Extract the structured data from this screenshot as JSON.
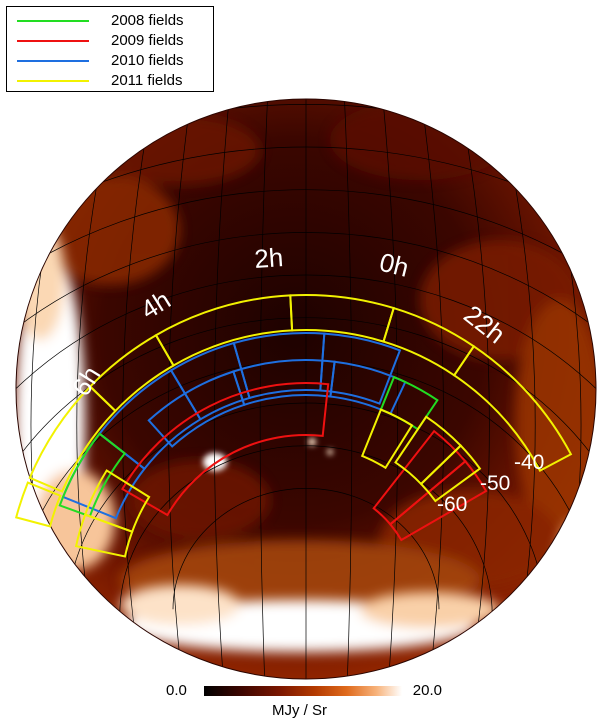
{
  "legend": {
    "items": [
      {
        "label": "2008 fields",
        "color": "#22dd22"
      },
      {
        "label": "2009 fields",
        "color": "#ee1111"
      },
      {
        "label": "2010 fields",
        "color": "#1e6fe0"
      },
      {
        "label": "2011 fields",
        "color": "#f2f200"
      }
    ]
  },
  "ra_labels": [
    "6h",
    "4h",
    "2h",
    "0h",
    "22h"
  ],
  "dec_labels": [
    "-40",
    "-50",
    "-60"
  ],
  "colorbar": {
    "min": "0.0",
    "max": "20.0",
    "unit": "MJy / Sr",
    "colormap": "dark-red-to-white"
  },
  "colors": {
    "sky_dark": "#2a0300",
    "sky_mid": "#6a1200",
    "sky_bright": "#ffffff",
    "grid": "#000000"
  }
}
